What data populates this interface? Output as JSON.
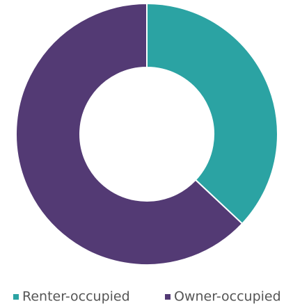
{
  "chart_data": {
    "type": "donut",
    "categories": [
      "Renter-occupied",
      "Owner-occupied"
    ],
    "values": [
      37,
      63
    ],
    "colors": [
      "#2ba3a3",
      "#533a74"
    ],
    "legend": "bottom"
  }
}
